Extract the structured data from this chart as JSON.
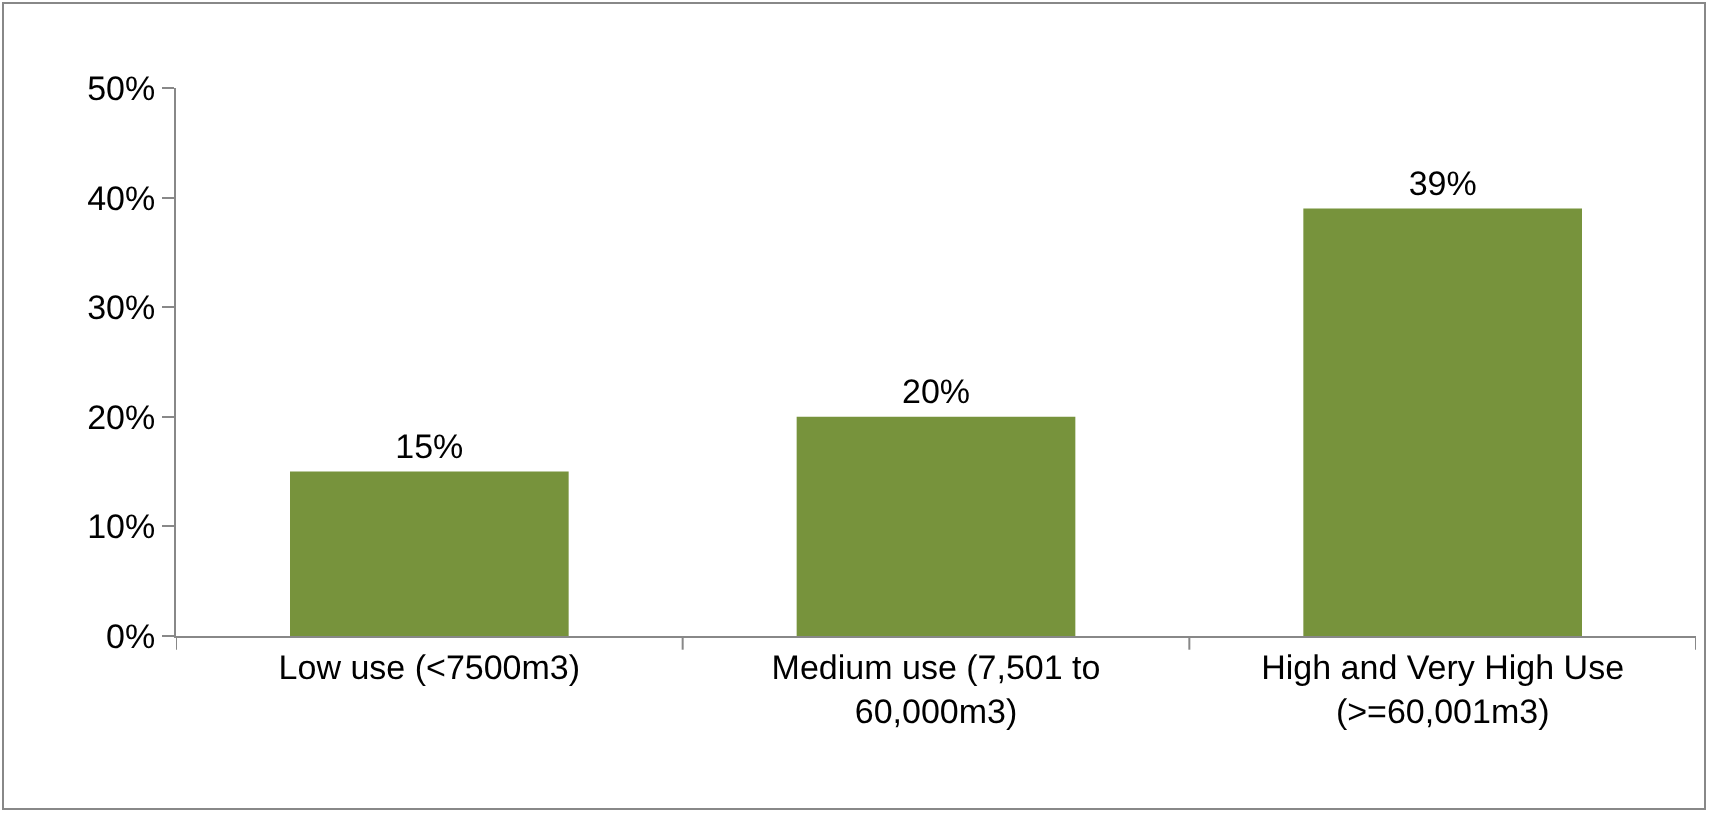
{
  "chart_data": {
    "type": "bar",
    "categories": [
      "Low use (<7500m3)",
      "Medium use (7,501 to 60,000m3)",
      "High and Very High Use (>=60,001m3)"
    ],
    "values": [
      15,
      20,
      39
    ],
    "value_labels": [
      "15%",
      "20%",
      "39%"
    ],
    "color": "#77933c",
    "ylim": [
      0,
      50
    ],
    "yticks": [
      {
        "value": 0,
        "label": "0%"
      },
      {
        "value": 10,
        "label": "10%"
      },
      {
        "value": 20,
        "label": "20%"
      },
      {
        "value": 30,
        "label": "30%"
      },
      {
        "value": 40,
        "label": "40%"
      },
      {
        "value": 50,
        "label": "50%"
      }
    ],
    "grid": false,
    "legend": false
  }
}
